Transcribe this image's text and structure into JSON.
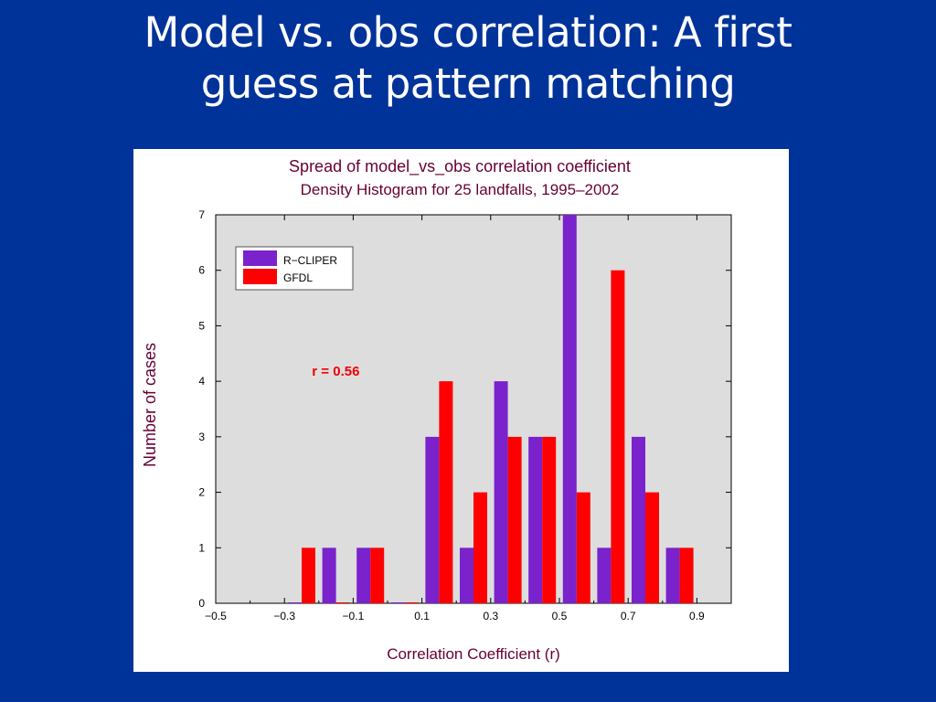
{
  "slide": {
    "title_line1": "Model vs. obs correlation: A first",
    "title_line2": "guess at pattern matching"
  },
  "colors": {
    "background": "#003399",
    "plot_area": "#dddddd",
    "title_text": "#660033",
    "rcliper": "#7a22cc",
    "gfdl": "#ff0000",
    "annotation": "#ee0000"
  },
  "chart_data": {
    "type": "bar",
    "title": "Spread of model_vs_obs correlation coefficient",
    "subtitle": "Density Histogram for 25 landfalls, 1995–2002",
    "xlabel": "Correlation Coefficient (r)",
    "ylabel": "Number of cases",
    "xlim": [
      -0.5,
      1.0
    ],
    "ylim": [
      0,
      7
    ],
    "xticks": [
      -0.5,
      -0.3,
      -0.1,
      0.1,
      0.3,
      0.5,
      0.7,
      0.9
    ],
    "xtick_labels": [
      "−0.5",
      "−0.3",
      "−0.1",
      "0.1",
      "0.3",
      "0.5",
      "0.7",
      "0.9"
    ],
    "yticks": [
      0,
      1,
      2,
      3,
      4,
      5,
      6,
      7
    ],
    "ytick_labels": [
      "0",
      "1",
      "2",
      "3",
      "4",
      "5",
      "6",
      "7"
    ],
    "bin_width": 0.1,
    "bins": [
      -0.3,
      -0.2,
      -0.1,
      0.0,
      0.1,
      0.2,
      0.3,
      0.4,
      0.5,
      0.6,
      0.7,
      0.8
    ],
    "series": [
      {
        "name": "R−CLIPER",
        "values": [
          0,
          1,
          1,
          0,
          3,
          1,
          4,
          3,
          7,
          1,
          3,
          1
        ]
      },
      {
        "name": "GFDL",
        "values": [
          1,
          0,
          1,
          0,
          4,
          2,
          3,
          3,
          2,
          6,
          2,
          1
        ]
      }
    ],
    "legend_position": "top-left",
    "annotation": {
      "text": "r = 0.56",
      "x": -0.22,
      "y": 4.1
    },
    "grid": false
  }
}
